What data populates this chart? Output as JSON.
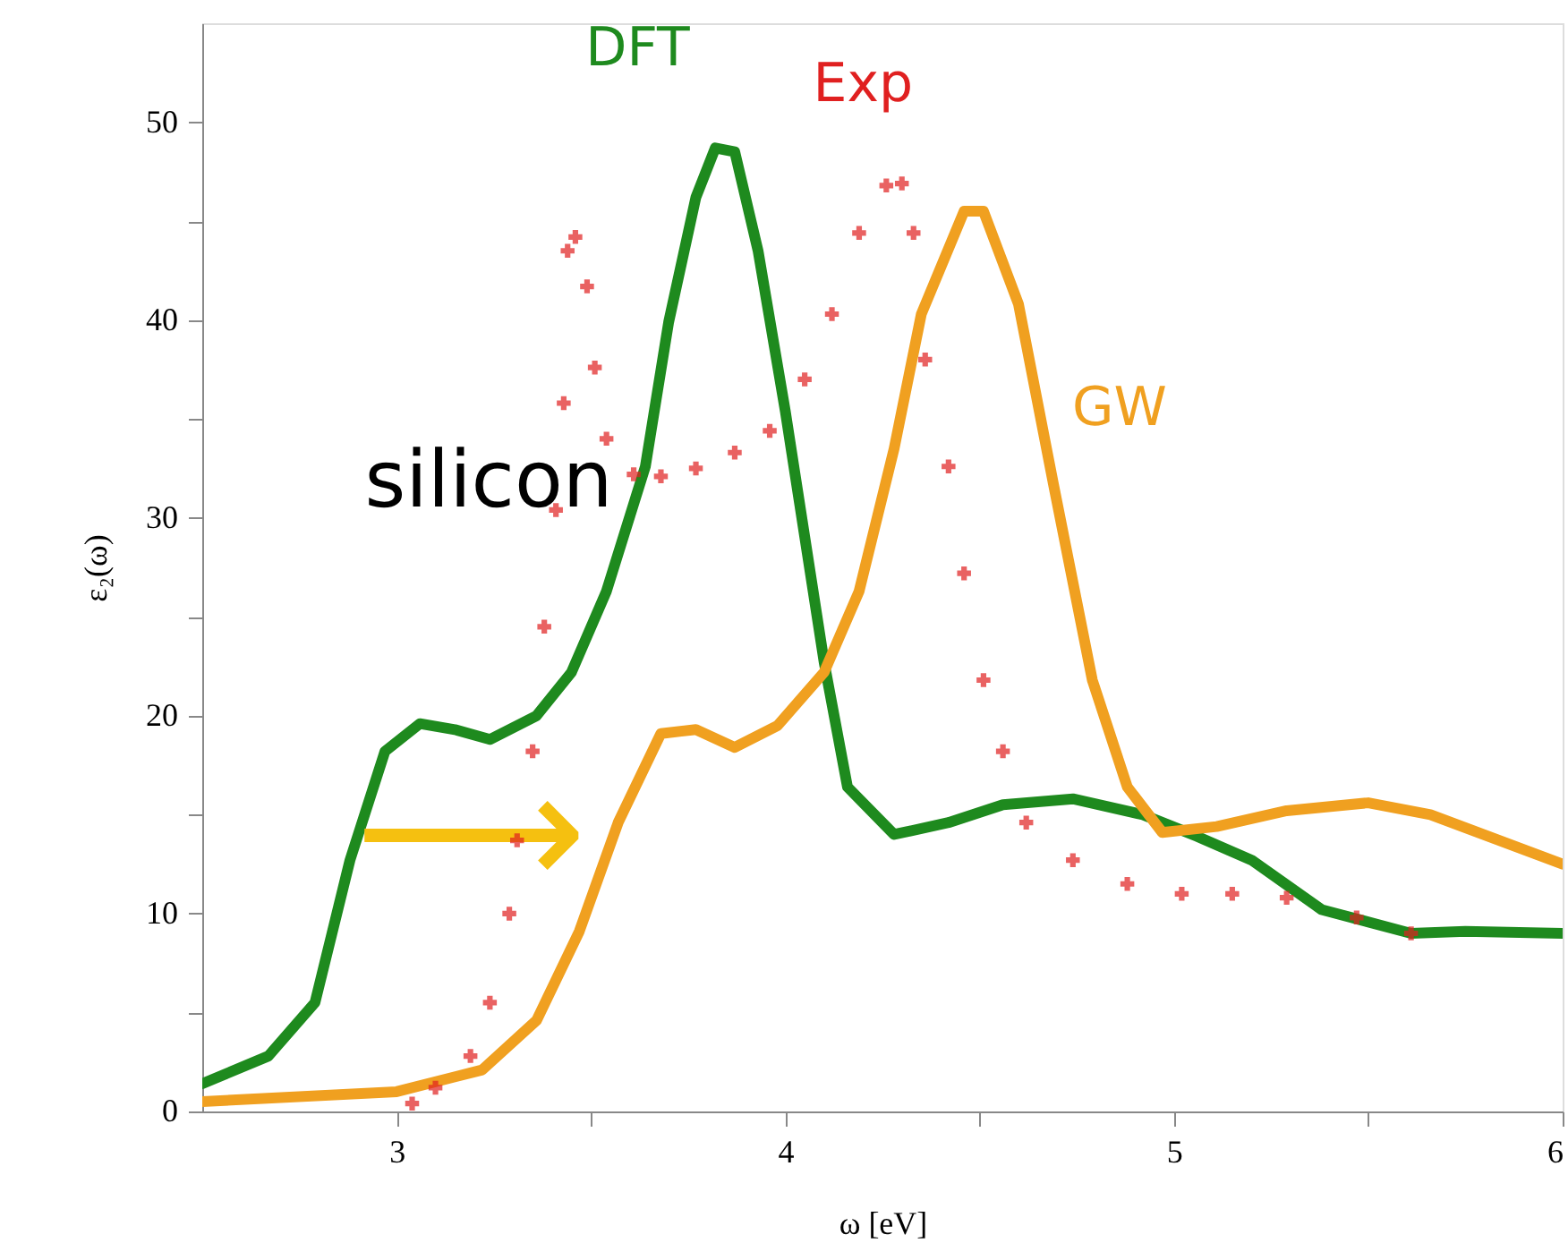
{
  "chart_data": {
    "type": "line",
    "xlabel": "ω [eV]",
    "ylabel": "ε₂(ω)",
    "xlim": [
      2.5,
      6
    ],
    "ylim": [
      0,
      55
    ],
    "xticks": [
      3,
      {
        "value": 3.5,
        "label": null
      },
      4,
      {
        "value": 4.5,
        "label": null
      },
      5,
      {
        "value": 5.5,
        "label": null
      },
      6
    ],
    "yticks": [
      0,
      {
        "value": 5,
        "label": null
      },
      10,
      {
        "value": 15,
        "label": null
      },
      20,
      {
        "value": 25,
        "label": null
      },
      30,
      {
        "value": 35,
        "label": null
      },
      40,
      {
        "value": 45,
        "label": null
      },
      50
    ],
    "annotations": [
      "silicon",
      "⟶"
    ],
    "series": [
      {
        "name": "DFT",
        "color": "#1e8a1e",
        "x": [
          2.5,
          2.67,
          2.79,
          2.88,
          2.97,
          3.06,
          3.15,
          3.24,
          3.36,
          3.45,
          3.54,
          3.64,
          3.7,
          3.77,
          3.82,
          3.87,
          3.93,
          4.0,
          4.1,
          4.16,
          4.28,
          4.42,
          4.56,
          4.74,
          4.92,
          5.06,
          5.2,
          5.38,
          5.61,
          5.75,
          6.0
        ],
        "values": [
          1.4,
          2.8,
          5.5,
          12.7,
          18.2,
          19.6,
          19.3,
          18.8,
          20,
          22.2,
          26.3,
          32.6,
          39.9,
          46.2,
          48.7,
          48.5,
          43.5,
          35.4,
          22.7,
          16.4,
          14,
          14.6,
          15.5,
          15.8,
          15,
          13.9,
          12.7,
          10.2,
          9,
          9.1,
          9.0
        ]
      },
      {
        "name": "Exp",
        "type": "scatter",
        "marker": "cross",
        "color": "#e02020",
        "x": [
          3.04,
          3.1,
          3.19,
          3.24,
          3.29,
          3.31,
          3.35,
          3.38,
          3.41,
          3.43,
          3.44,
          3.46,
          3.49,
          3.51,
          3.54,
          3.61,
          3.68,
          3.77,
          3.87,
          3.96,
          4.05,
          4.12,
          4.19,
          4.26,
          4.3,
          4.33,
          4.36,
          4.42,
          4.46,
          4.51,
          4.56,
          4.62,
          4.74,
          4.88,
          5.02,
          5.15,
          5.29,
          5.47,
          5.61
        ],
        "values": [
          0.4,
          1.2,
          2.8,
          5.5,
          10,
          13.7,
          18.2,
          24.5,
          30.4,
          35.8,
          43.5,
          44.2,
          41.7,
          37.6,
          34,
          32.2,
          32.1,
          32.5,
          33.3,
          34.4,
          37,
          40.3,
          44.4,
          46.8,
          46.9,
          44.4,
          38,
          32.6,
          27.2,
          21.8,
          18.2,
          14.6,
          12.7,
          11.5,
          11,
          11,
          10.8,
          9.8,
          9
        ]
      },
      {
        "name": "GW",
        "color": "#f0a020",
        "x": [
          2.5,
          3.0,
          3.22,
          3.36,
          3.47,
          3.57,
          3.68,
          3.77,
          3.87,
          3.98,
          4.1,
          4.19,
          4.28,
          4.35,
          4.46,
          4.51,
          4.6,
          4.69,
          4.79,
          4.88,
          4.97,
          5.11,
          5.29,
          5.5,
          5.66,
          6.0
        ],
        "values": [
          0.5,
          1,
          2.1,
          4.6,
          9.1,
          14.6,
          19.1,
          19.3,
          18.4,
          19.5,
          22.2,
          26.3,
          33.5,
          40.3,
          45.5,
          45.5,
          40.8,
          31.7,
          21.8,
          16.4,
          14.1,
          14.4,
          15.2,
          15.6,
          15,
          12.5
        ]
      }
    ]
  }
}
